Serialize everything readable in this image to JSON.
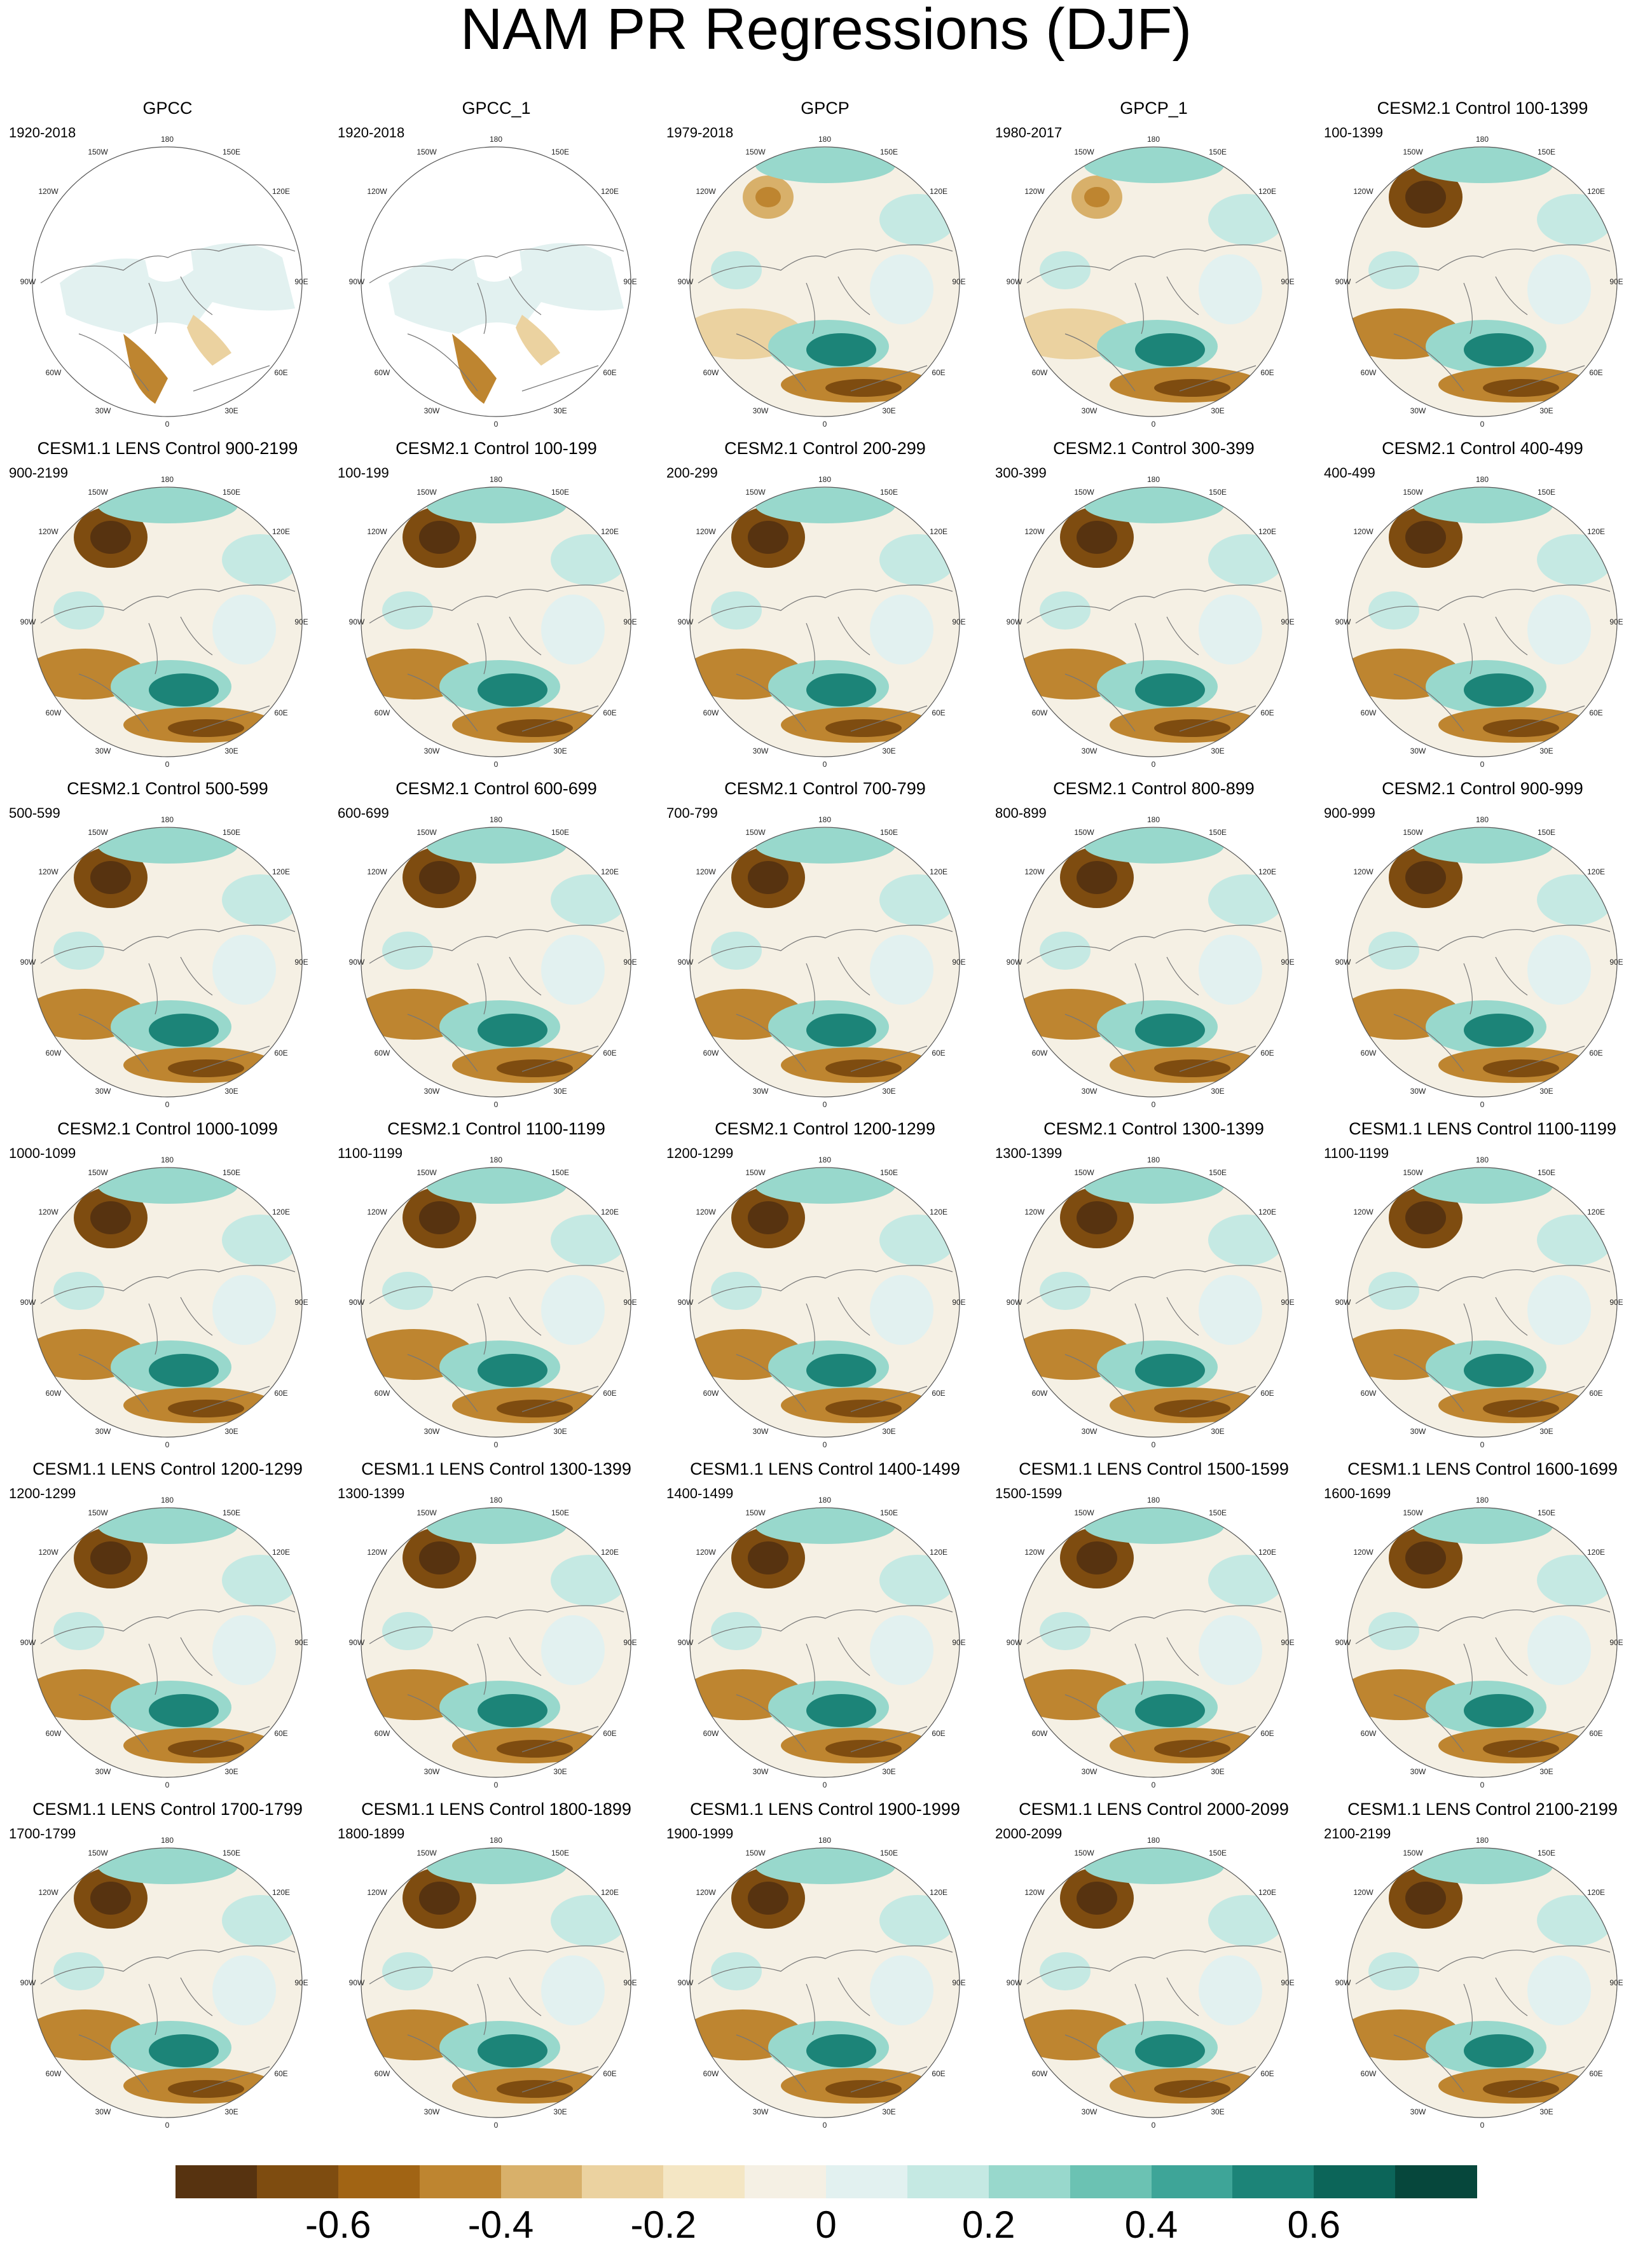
{
  "title": "NAM PR Regressions (DJF)",
  "panels": [
    {
      "title": "GPCC",
      "period": "1920-2018"
    },
    {
      "title": "GPCC_1",
      "period": "1920-2018"
    },
    {
      "title": "GPCP",
      "period": "1979-2018"
    },
    {
      "title": "GPCP_1",
      "period": "1980-2017"
    },
    {
      "title": "CESM2.1 Control 100-1399",
      "period": "100-1399"
    },
    {
      "title": "CESM1.1 LENS Control 900-2199",
      "period": "900-2199"
    },
    {
      "title": "CESM2.1 Control 100-199",
      "period": "100-199"
    },
    {
      "title": "CESM2.1 Control 200-299",
      "period": "200-299"
    },
    {
      "title": "CESM2.1 Control 300-399",
      "period": "300-399"
    },
    {
      "title": "CESM2.1 Control 400-499",
      "period": "400-499"
    },
    {
      "title": "CESM2.1 Control 500-599",
      "period": "500-599"
    },
    {
      "title": "CESM2.1 Control 600-699",
      "period": "600-699"
    },
    {
      "title": "CESM2.1 Control 700-799",
      "period": "700-799"
    },
    {
      "title": "CESM2.1 Control 800-899",
      "period": "800-899"
    },
    {
      "title": "CESM2.1 Control 900-999",
      "period": "900-999"
    },
    {
      "title": "CESM2.1 Control 1000-1099",
      "period": "1000-1099"
    },
    {
      "title": "CESM2.1 Control 1100-1199",
      "period": "1100-1199"
    },
    {
      "title": "CESM2.1 Control 1200-1299",
      "period": "1200-1299"
    },
    {
      "title": "CESM2.1 Control 1300-1399",
      "period": "1300-1399"
    },
    {
      "title": "CESM1.1 LENS Control 1100-1199",
      "period": "1100-1199"
    },
    {
      "title": "CESM1.1 LENS Control 1200-1299",
      "period": "1200-1299"
    },
    {
      "title": "CESM1.1 LENS Control 1300-1399",
      "period": "1300-1399"
    },
    {
      "title": "CESM1.1 LENS Control 1400-1499",
      "period": "1400-1499"
    },
    {
      "title": "CESM1.1 LENS Control 1500-1599",
      "period": "1500-1599"
    },
    {
      "title": "CESM1.1 LENS Control 1600-1699",
      "period": "1600-1699"
    },
    {
      "title": "CESM1.1 LENS Control 1700-1799",
      "period": "1700-1799"
    },
    {
      "title": "CESM1.1 LENS Control 1800-1899",
      "period": "1800-1899"
    },
    {
      "title": "CESM1.1 LENS Control 1900-1999",
      "period": "1900-1999"
    },
    {
      "title": "CESM1.1 LENS Control 2000-2099",
      "period": "2000-2099"
    },
    {
      "title": "CESM1.1 LENS Control 2100-2199",
      "period": "2100-2199"
    }
  ],
  "map_labels": {
    "n": "180",
    "nne": "150E",
    "ene": "120E",
    "e": "90E",
    "ese": "60E",
    "sse": "30E",
    "s": "0",
    "ssw": "30W",
    "wsw": "60W",
    "w": "90W",
    "wnw": "120W",
    "nnw": "150W"
  },
  "colorbar": {
    "colors": [
      "#573310",
      "#7e4c10",
      "#a16414",
      "#be8530",
      "#d8b06a",
      "#ebd2a0",
      "#f4e6c4",
      "#f5f0e4",
      "#e2f1f0",
      "#c5e9e3",
      "#98d8cc",
      "#6bc2b3",
      "#3ea598",
      "#1c8478",
      "#0c6559",
      "#06473c"
    ],
    "tick_labels": [
      "-0.6",
      "-0.4",
      "-0.2",
      "0",
      "0.2",
      "0.4",
      "0.6"
    ]
  }
}
